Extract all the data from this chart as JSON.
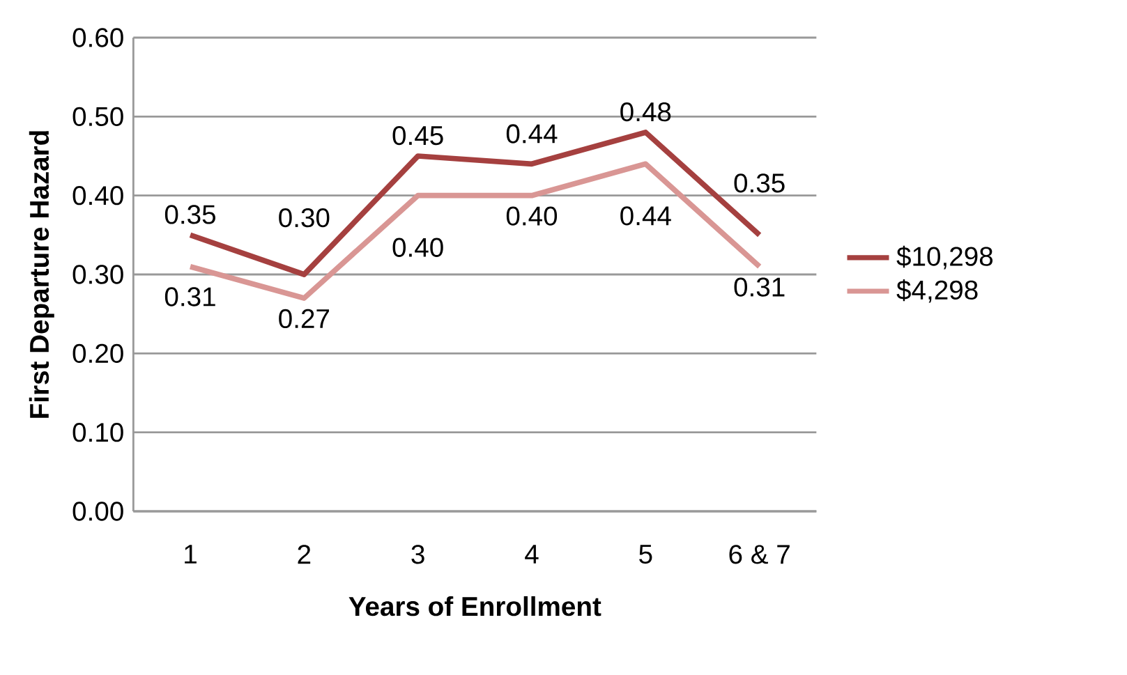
{
  "chart_data": {
    "type": "line",
    "xlabel": "Years of Enrollment",
    "ylabel": "First Departure Hazard",
    "categories": [
      "1",
      "2",
      "3",
      "4",
      "5",
      "6 & 7"
    ],
    "series": [
      {
        "name": "$10,298",
        "color": "#a5403f",
        "values": [
          0.35,
          0.3,
          0.45,
          0.44,
          0.48,
          0.35
        ],
        "value_labels": [
          "0.35",
          "0.30",
          "0.45",
          "0.44",
          "0.48",
          "0.35"
        ]
      },
      {
        "name": "$4,298",
        "color": "#d99694",
        "values": [
          0.31,
          0.27,
          0.4,
          0.4,
          0.44,
          0.31
        ],
        "value_labels": [
          "0.31",
          "0.27",
          "0.40",
          "0.40",
          "0.44",
          "0.31"
        ]
      }
    ],
    "ylim": [
      0,
      0.6
    ],
    "yticks": [
      {
        "value": 0,
        "label": "0.00"
      },
      {
        "value": 0.1,
        "label": "0.10"
      },
      {
        "value": 0.2,
        "label": "0.20"
      },
      {
        "value": 0.3,
        "label": "0.30"
      },
      {
        "value": 0.4,
        "label": "0.40"
      },
      {
        "value": 0.5,
        "label": "0.50"
      },
      {
        "value": 0.6,
        "label": "0.60"
      }
    ],
    "grid": "y",
    "legend": "right",
    "marker": "none",
    "line_style": "solid"
  }
}
